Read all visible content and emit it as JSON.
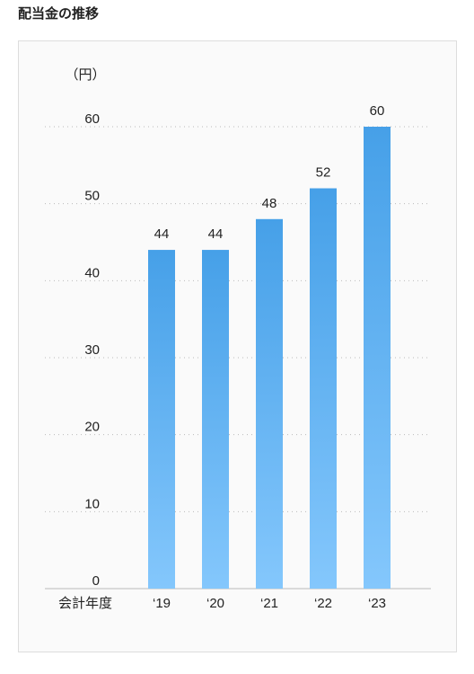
{
  "chart_data": {
    "type": "bar",
    "title": "配当金の推移",
    "y_label": "（円）",
    "x_label": "会計年度",
    "categories": [
      "‘19",
      "‘20",
      "‘21",
      "‘22",
      "‘23"
    ],
    "values": [
      44,
      44,
      48,
      52,
      60
    ],
    "gradient": [
      "#46a0e8",
      "#84c7fc"
    ],
    "ylim": [
      0,
      60
    ],
    "yticks": [
      0,
      10,
      20,
      30,
      40,
      50,
      60
    ],
    "grid": true
  }
}
